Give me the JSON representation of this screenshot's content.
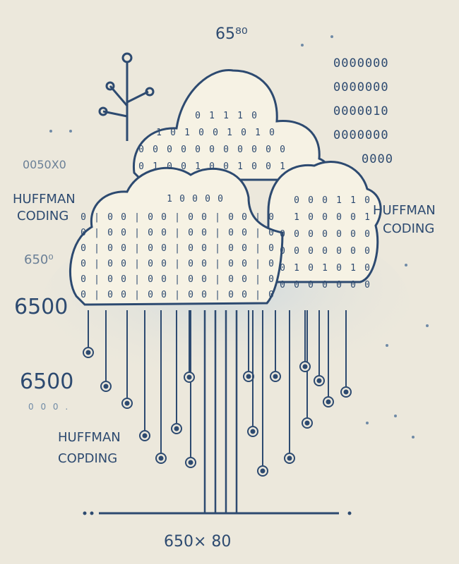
{
  "texts": {
    "top_number": "65⁸⁰",
    "top_left_code": "0050X0",
    "left_huffman_1": "HUFFMAN",
    "left_coding_1": "CODING",
    "left_6500_small": "650⁰",
    "left_6500_large": "6500",
    "left_6500_mid": "6500",
    "left_dots": "0 0 0 .",
    "left_huffman_2": "HUFFMAN",
    "left_coding_2": "COPDING",
    "right_huffman": "HUFFMAN",
    "right_coding": "CODING",
    "bottom_dimension": "650× 80"
  },
  "binary_column": [
    "0000000",
    "0000000",
    "0000010",
    "0000000",
    "0000"
  ],
  "colors": {
    "background": "#ece8dc",
    "ink": "#2d4a70",
    "cloud_fill": "#f6f2e4",
    "cloud_shadow": "#cdd8df"
  },
  "icons": [
    "tree-branch-icon",
    "cloud-icon",
    "circuit-node-icon"
  ]
}
